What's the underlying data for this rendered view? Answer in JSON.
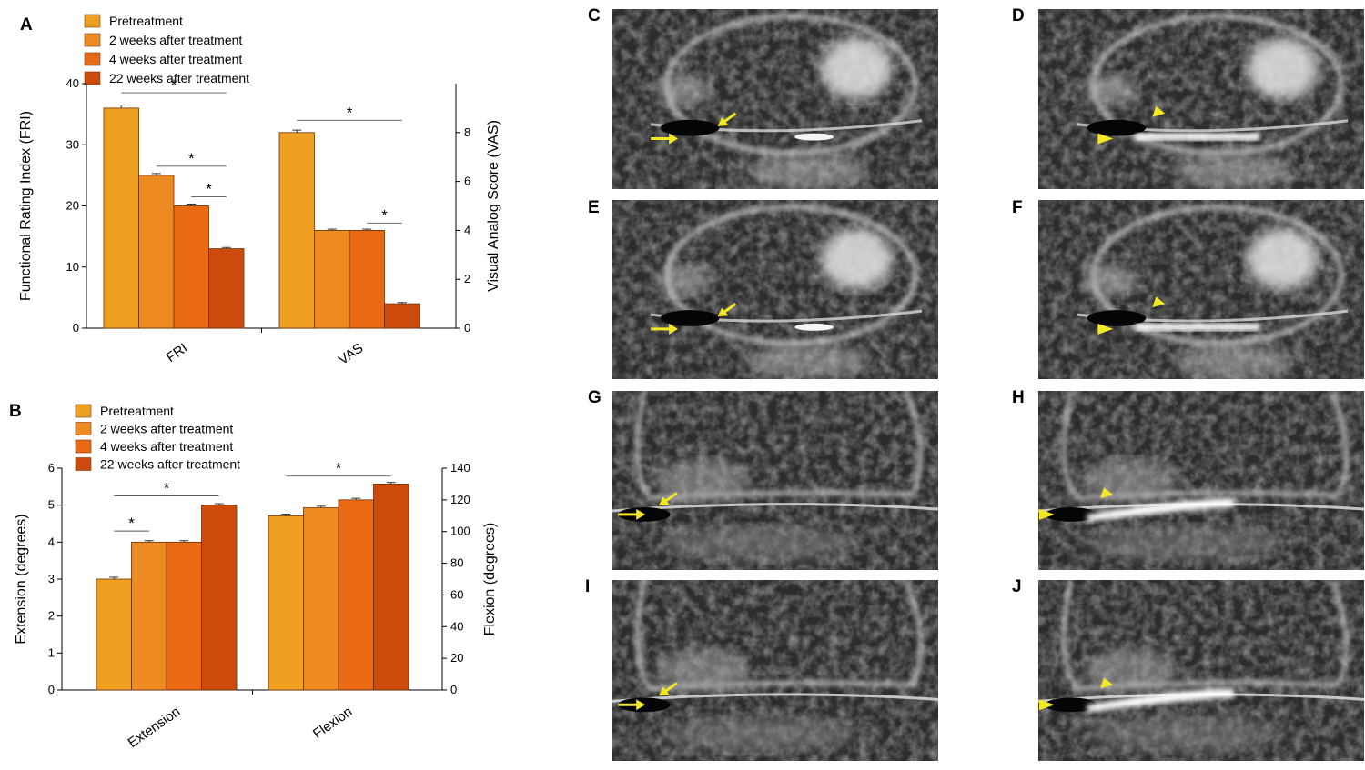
{
  "colors": {
    "pretreatment": "#F0A020",
    "week2": "#EE8A22",
    "week4": "#EA6A14",
    "week22": "#CC4A0C",
    "mri_marker": "#F2E824"
  },
  "chart_data": [
    {
      "panel": "A",
      "type": "bar",
      "categories": [
        "FRI",
        "VAS"
      ],
      "legend": [
        "Pretreatment",
        "2 weeks after treatment",
        "4 weeks after treatment",
        "22 weeks after treatment"
      ],
      "legend_position": "top-left",
      "ylabel_left": "Functional Rating Index (FRI)",
      "ylim_left": [
        0,
        40
      ],
      "yticks_left": [
        "0",
        "10",
        "20",
        "30",
        "40"
      ],
      "ylabel_right": "Visual Analog Score (VAS)",
      "ylim_right": [
        0,
        10
      ],
      "yticks_right": [
        "0",
        "2",
        "4",
        "6",
        "8"
      ],
      "groups": [
        {
          "axis": "left",
          "values": [
            36,
            25,
            20,
            13
          ],
          "errors": [
            0.5,
            0.3,
            0.3,
            0.2
          ]
        },
        {
          "axis": "right",
          "values": [
            8,
            4,
            4,
            1
          ],
          "errors": [
            0.1,
            0.05,
            0.05,
            0.05
          ]
        }
      ],
      "significance": [
        {
          "group": 0,
          "from": 0,
          "to": 3,
          "y": 38.5,
          "label": "*"
        },
        {
          "group": 0,
          "from": 1,
          "to": 3,
          "y": 26.5,
          "label": "*"
        },
        {
          "group": 0,
          "from": 2,
          "to": 3,
          "y": 21.5,
          "label": "*"
        },
        {
          "group": 1,
          "from": 0,
          "to": 3,
          "y": 8.5,
          "label": "*"
        },
        {
          "group": 1,
          "from": 2,
          "to": 3,
          "y": 4.3,
          "label": "*"
        }
      ]
    },
    {
      "panel": "B",
      "type": "bar",
      "categories": [
        "Extension",
        "Flexion"
      ],
      "legend": [
        "Pretreatment",
        "2 weeks after treatment",
        "4 weeks after treatment",
        "22 weeks after treatment"
      ],
      "legend_position": "top-left",
      "ylabel_left": "Extension (degrees)",
      "ylim_left": [
        0,
        6
      ],
      "yticks_left": [
        "0",
        "1",
        "2",
        "3",
        "4",
        "5",
        "6"
      ],
      "ylabel_right": "Flexion (degrees)",
      "ylim_right": [
        0,
        140
      ],
      "yticks_right": [
        "0",
        "20",
        "40",
        "60",
        "80",
        "100",
        "120",
        "140"
      ],
      "groups": [
        {
          "axis": "left",
          "values": [
            3,
            4,
            4,
            5
          ],
          "errors": [
            0.05,
            0.04,
            0.04,
            0.04
          ]
        },
        {
          "axis": "right",
          "values": [
            110,
            115,
            120,
            130
          ],
          "errors": [
            1,
            1,
            1,
            1
          ]
        }
      ],
      "significance": [
        {
          "group": 0,
          "from": 0,
          "to": 1,
          "y": 4.3,
          "label": "*"
        },
        {
          "group": 0,
          "from": 0,
          "to": 3,
          "y": 5.25,
          "label": "*"
        },
        {
          "group": 1,
          "from": 0,
          "to": 3,
          "y": 135,
          "label": "*"
        }
      ]
    }
  ],
  "mri_panels": [
    {
      "label": "C",
      "view": "sagittal",
      "marker": "arrow"
    },
    {
      "label": "D",
      "view": "sagittal",
      "marker": "arrowhead"
    },
    {
      "label": "E",
      "view": "sagittal",
      "marker": "arrow"
    },
    {
      "label": "F",
      "view": "sagittal",
      "marker": "arrowhead"
    },
    {
      "label": "G",
      "view": "coronal",
      "marker": "arrow"
    },
    {
      "label": "H",
      "view": "coronal",
      "marker": "arrowhead"
    },
    {
      "label": "I",
      "view": "coronal",
      "marker": "arrow"
    },
    {
      "label": "J",
      "view": "coronal",
      "marker": "arrowhead"
    }
  ]
}
